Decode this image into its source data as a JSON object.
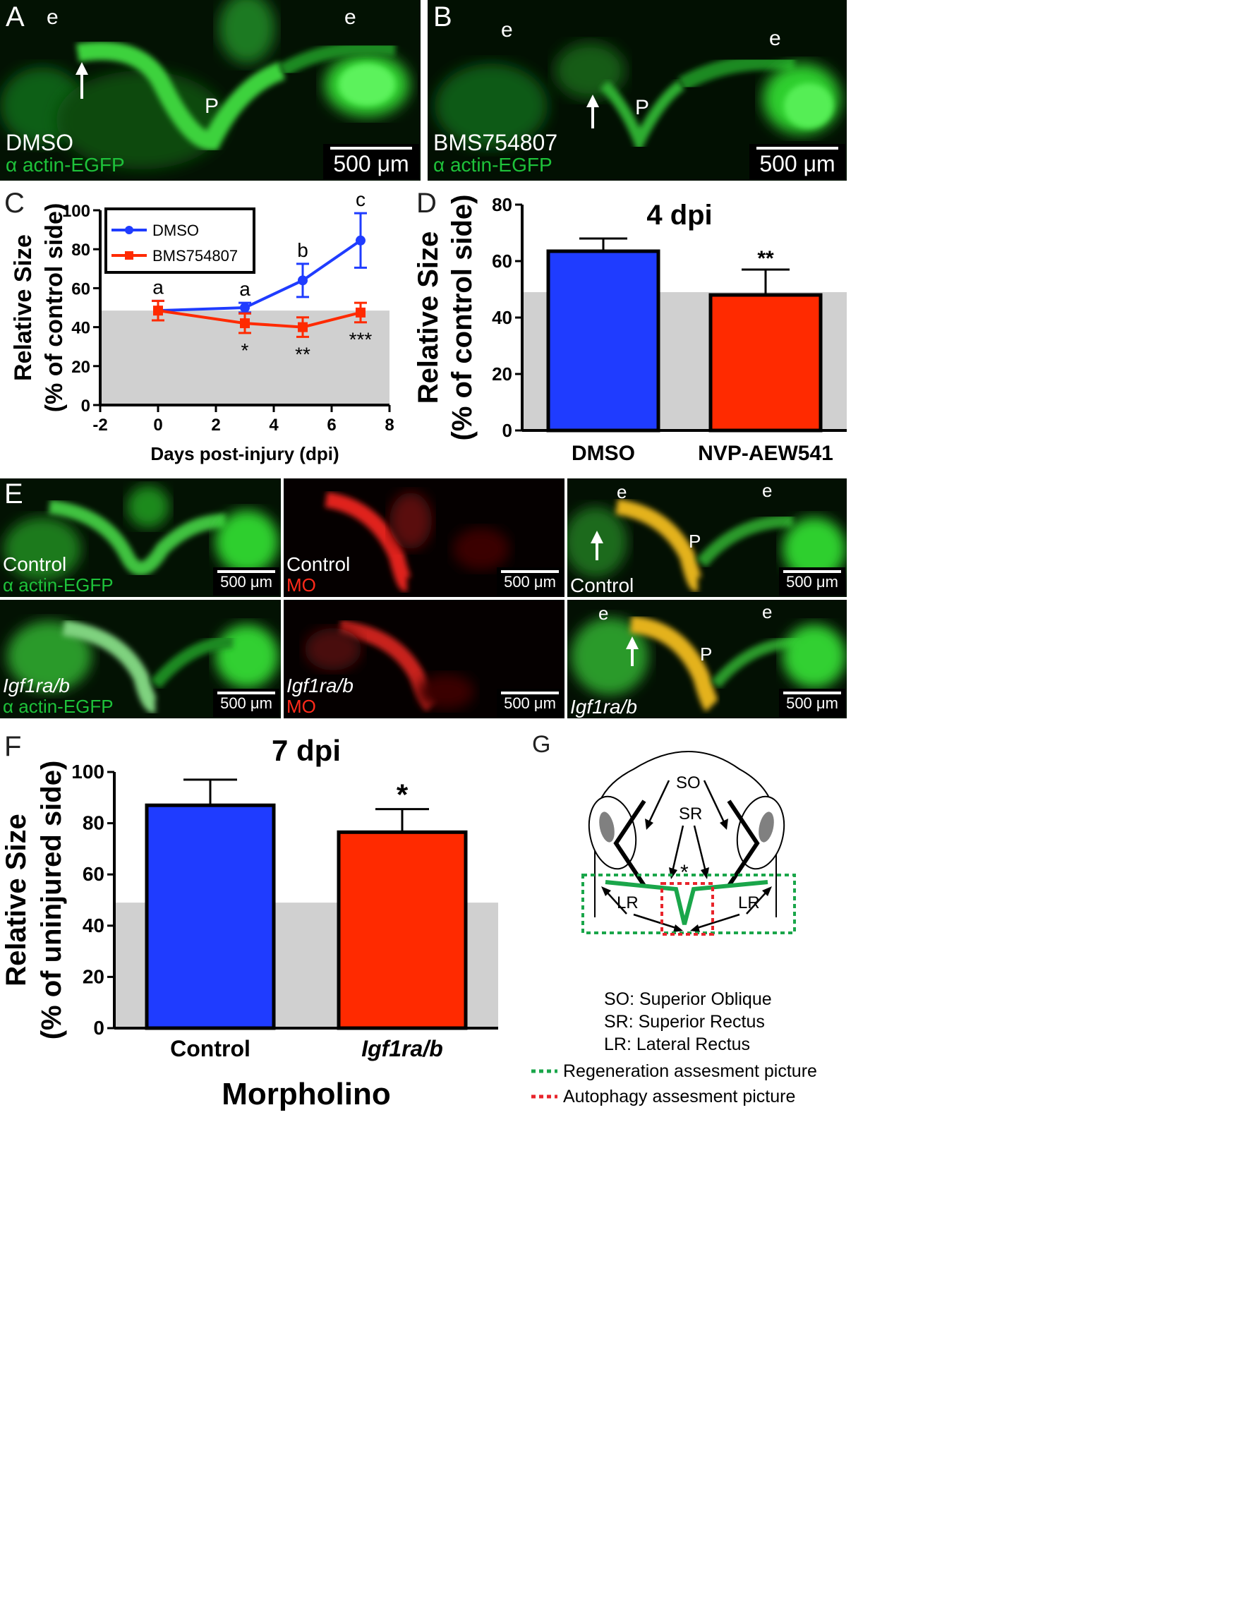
{
  "panel_a": {
    "letter": "A",
    "marks": [
      "e",
      "e",
      "P"
    ],
    "treatment": "DMSO",
    "reporter": "α actin-EGFP",
    "scale": "500 μm"
  },
  "panel_b": {
    "letter": "B",
    "marks": [
      "e",
      "e",
      "P"
    ],
    "treatment": "BMS754807",
    "reporter": "α actin-EGFP",
    "scale": "500 μm"
  },
  "panel_e": {
    "letter": "E",
    "tiles": [
      {
        "label": "Control",
        "sub": "α actin-EGFP",
        "scale": "500 μm"
      },
      {
        "label": "Control",
        "sub": "MO",
        "scale": "500 μm"
      },
      {
        "label": "Control",
        "sub": "",
        "marks": [
          "e",
          "e",
          "P"
        ],
        "scale": "500 μm"
      },
      {
        "label": "Igf1ra/b",
        "sub": "α actin-EGFP",
        "scale": "500 μm"
      },
      {
        "label": "Igf1ra/b",
        "sub": "MO",
        "scale": "500 μm"
      },
      {
        "label": "Igf1ra/b",
        "sub": "",
        "marks": [
          "e",
          "e",
          "P"
        ],
        "scale": "500 μm"
      }
    ]
  },
  "panel_g": {
    "letter": "G",
    "labels": {
      "so": "SO",
      "sr": "SR",
      "lr_left": "LR",
      "lr_right": "LR",
      "star": "*"
    },
    "key": [
      "SO: Superior Oblique",
      "SR: Superior Rectus",
      "LR: Lateral Rectus"
    ],
    "legend": [
      {
        "label": "Regeneration assesment picture",
        "color": "#1aa64a"
      },
      {
        "label": "Autophagy assesment picture",
        "color": "#e8242b"
      }
    ]
  },
  "colors": {
    "blue": "#1f3cff",
    "red": "#ff2a00",
    "gray_band": "#d0d0d0"
  },
  "chart_data": [
    {
      "panel": "C",
      "type": "line",
      "xlabel": "Days post-injury (dpi)",
      "ylabel": [
        "Relative Size",
        "(% of control side)"
      ],
      "xlim": [
        -2,
        8
      ],
      "ylim": [
        0,
        100
      ],
      "xticks": [
        -2,
        0,
        2,
        4,
        6,
        8
      ],
      "yticks": [
        0,
        20,
        40,
        60,
        80,
        100
      ],
      "band_max": 48.5,
      "legend_position": "top-left",
      "series": [
        {
          "name": "DMSO",
          "color": "#1f3cff",
          "marker": "circle",
          "x": [
            0,
            3,
            5,
            7
          ],
          "y": [
            48.5,
            50,
            64,
            84.5
          ],
          "err": [
            5,
            2.5,
            8.5,
            14
          ],
          "annotations": [
            "a",
            "a",
            "b",
            "c"
          ]
        },
        {
          "name": "BMS754807",
          "color": "#ff2a00",
          "marker": "square",
          "x": [
            0,
            3,
            5,
            7
          ],
          "y": [
            48.5,
            42,
            40,
            47.5
          ],
          "err": [
            5,
            5,
            5,
            5
          ],
          "annotations": [
            "",
            "*",
            "**",
            "***"
          ]
        }
      ]
    },
    {
      "panel": "D",
      "type": "bar",
      "title": "4 dpi",
      "ylabel": [
        "Relative Size",
        "(% of control side)"
      ],
      "categories": [
        "DMSO",
        "NVP-AEW541"
      ],
      "values": [
        63.5,
        48
      ],
      "err": [
        4.5,
        9
      ],
      "colors": [
        "#1f3cff",
        "#ff2a00"
      ],
      "annotations": [
        "",
        "**"
      ],
      "ylim": [
        0,
        80
      ],
      "yticks": [
        0,
        20,
        40,
        60,
        80
      ],
      "band_max": 49
    },
    {
      "panel": "F",
      "type": "bar",
      "title": "7 dpi",
      "ylabel": [
        "Relative Size",
        "(% of uninjured side)"
      ],
      "xlabel": "Morpholino",
      "categories": [
        "Control",
        "Igf1ra/b"
      ],
      "values": [
        87,
        76.5
      ],
      "err": [
        10,
        9
      ],
      "colors": [
        "#1f3cff",
        "#ff2a00"
      ],
      "annotations": [
        "",
        "*"
      ],
      "ylim": [
        0,
        100
      ],
      "yticks": [
        0,
        20,
        40,
        60,
        80,
        100
      ],
      "band_max": 49
    }
  ]
}
